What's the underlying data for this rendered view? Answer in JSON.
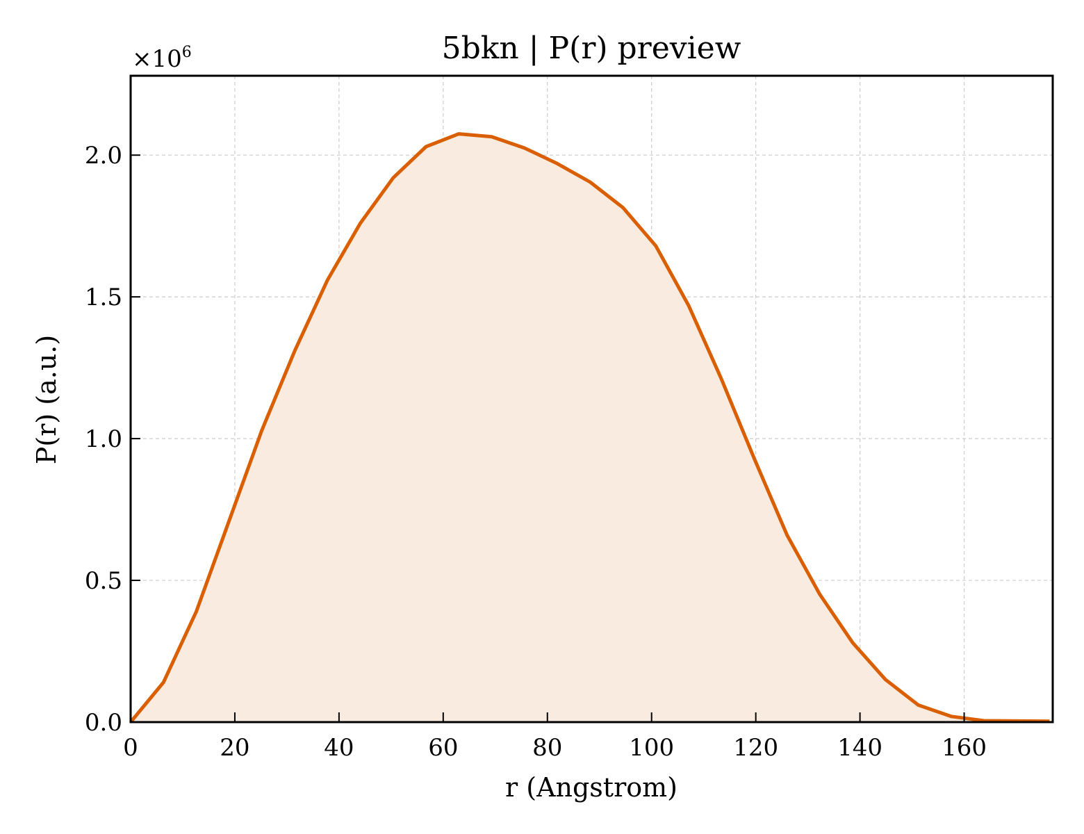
{
  "chart_data": {
    "type": "area",
    "title": "5bkn | P(r) preview",
    "xlabel": "r (Angstrom)",
    "ylabel": "P(r) (a.u.)",
    "y_multiplier": {
      "base": "×10",
      "exponent": "6"
    },
    "xlim": [
      0,
      177
    ],
    "ylim": [
      0,
      2.28
    ],
    "y_scale_factor": 1000000,
    "xticks": [
      0,
      20,
      40,
      60,
      80,
      100,
      120,
      140,
      160
    ],
    "yticks": [
      0.0,
      0.5,
      1.0,
      1.5,
      2.0
    ],
    "xtick_labels": [
      "0",
      "20",
      "40",
      "60",
      "80",
      "100",
      "120",
      "140",
      "160"
    ],
    "ytick_labels": [
      "0.0",
      "0.5",
      "1.0",
      "1.5",
      "2.0"
    ],
    "grid": true,
    "line_color": "#d95f02",
    "fill_color": "#f9ebe0",
    "series": [
      {
        "x": [
          0,
          6.3,
          12.6,
          18.9,
          25.2,
          31.5,
          37.8,
          44.1,
          50.4,
          56.7,
          63.0,
          69.3,
          75.6,
          81.9,
          88.2,
          94.5,
          100.8,
          107.1,
          113.4,
          119.7,
          126.0,
          132.3,
          138.6,
          144.9,
          151.2,
          157.5,
          163.8,
          170.1,
          176.4
        ],
        "y": [
          0.0,
          0.14,
          0.39,
          0.71,
          1.03,
          1.31,
          1.56,
          1.76,
          1.92,
          2.03,
          2.075,
          2.065,
          2.025,
          1.97,
          1.905,
          1.815,
          1.68,
          1.47,
          1.21,
          0.93,
          0.66,
          0.45,
          0.28,
          0.15,
          0.06,
          0.02,
          0.005,
          0.004,
          0.003
        ]
      }
    ]
  }
}
